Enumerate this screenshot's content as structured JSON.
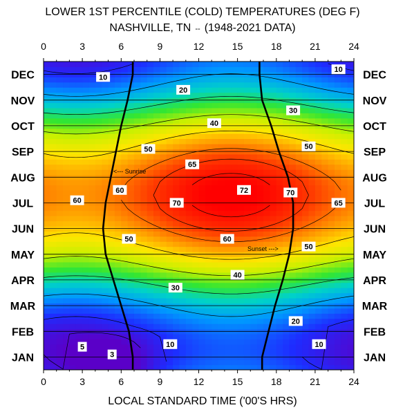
{
  "chart_data": {
    "type": "heatmap",
    "title_line1": "LOWER 1ST PERCENTILE  (COLD) TEMPERATURES (DEG F)",
    "title_line2": "NASHVILLE, TN",
    "title_line2_sep": "--",
    "title_line2_period": "(1948-2021 DATA)",
    "xlabel": "LOCAL STANDARD TIME ('00'S HRS)",
    "x_range": [
      0,
      24
    ],
    "x_ticks": [
      "0",
      "3",
      "6",
      "9",
      "12",
      "15",
      "18",
      "21",
      "24"
    ],
    "y_categories_bottom_to_top": [
      "JAN",
      "FEB",
      "MAR",
      "APR",
      "MAY",
      "JUN",
      "JUL",
      "AUG",
      "SEP",
      "OCT",
      "NOV",
      "DEC"
    ],
    "z_range": [
      3,
      72
    ],
    "contour_levels": [
      5,
      10,
      20,
      30,
      40,
      50,
      60,
      65,
      70
    ],
    "grid": "horizontal month lines",
    "contour_labels": [
      {
        "text": "10",
        "hour": 4.6,
        "month": 11.9
      },
      {
        "text": "20",
        "hour": 10.8,
        "month": 11.4
      },
      {
        "text": "10",
        "hour": 22.8,
        "month": 12.2
      },
      {
        "text": "30",
        "hour": 19.3,
        "month": 10.6
      },
      {
        "text": "40",
        "hour": 13.2,
        "month": 10.1
      },
      {
        "text": "50",
        "hour": 8.1,
        "month": 9.1
      },
      {
        "text": "50",
        "hour": 20.5,
        "month": 9.2
      },
      {
        "text": "65",
        "hour": 11.5,
        "month": 8.5
      },
      {
        "text": "60",
        "hour": 2.6,
        "month": 7.1
      },
      {
        "text": "60",
        "hour": 5.9,
        "month": 7.5
      },
      {
        "text": "72",
        "hour": 15.5,
        "month": 7.5
      },
      {
        "text": "70",
        "hour": 19.1,
        "month": 7.4
      },
      {
        "text": "70",
        "hour": 10.3,
        "month": 7.0
      },
      {
        "text": "65",
        "hour": 22.8,
        "month": 7.0
      },
      {
        "text": "50",
        "hour": 6.6,
        "month": 5.6
      },
      {
        "text": "60",
        "hour": 14.2,
        "month": 5.6
      },
      {
        "text": "50",
        "hour": 20.5,
        "month": 5.3
      },
      {
        "text": "40",
        "hour": 15.0,
        "month": 4.2
      },
      {
        "text": "30",
        "hour": 10.2,
        "month": 3.7
      },
      {
        "text": "20",
        "hour": 19.5,
        "month": 2.4
      },
      {
        "text": "10",
        "hour": 9.8,
        "month": 1.5
      },
      {
        "text": "10",
        "hour": 21.3,
        "month": 1.5
      },
      {
        "text": "5",
        "hour": 3.0,
        "month": 1.4
      },
      {
        "text": "3",
        "hour": 5.3,
        "month": 1.1
      }
    ],
    "sunrise_label": "<--- Sunrise",
    "sunset_label": "Sunset --->",
    "sunrise_hours_by_month": [
      6.9,
      6.6,
      6.0,
      5.4,
      4.8,
      4.6,
      4.8,
      5.2,
      5.6,
      6.0,
      6.5,
      6.9
    ],
    "sunset_hours_by_month": [
      16.9,
      17.4,
      17.9,
      18.5,
      19.0,
      19.3,
      19.3,
      18.9,
      18.2,
      17.6,
      16.9,
      16.7
    ],
    "colormap": [
      "#5a00c8",
      "#1e2cff",
      "#0096ff",
      "#00d2c8",
      "#32e632",
      "#c8f000",
      "#ffe600",
      "#ff9600",
      "#ff3c00",
      "#ff0000"
    ]
  }
}
